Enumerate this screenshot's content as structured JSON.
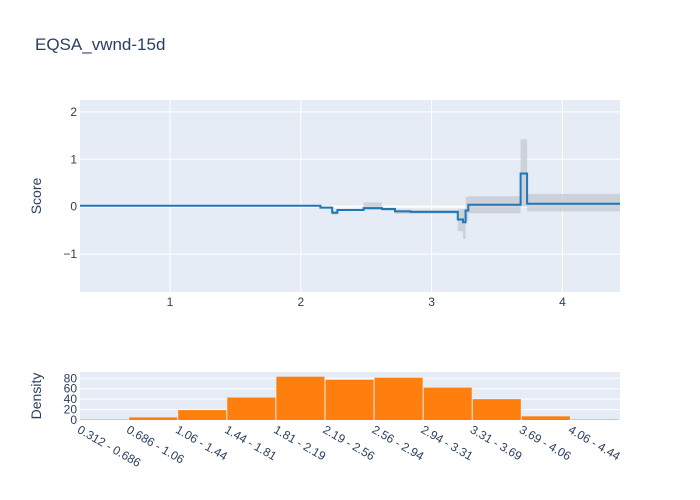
{
  "title": "EQSA_vwnd-15d",
  "chart_data": [
    {
      "type": "line",
      "ylabel": "Score",
      "xlim": [
        0.312,
        4.44
      ],
      "ylim": [
        -1.8,
        2.25
      ],
      "x_ticks": [
        1,
        2,
        3,
        4
      ],
      "y_ticks": [
        -1,
        0,
        1,
        2
      ],
      "y_tick_labels": [
        "−1",
        "0",
        "1",
        "2"
      ],
      "grid": true,
      "line_color": "#1f77b4",
      "band_color": "#c4c8d0",
      "steps": [
        {
          "x0": 0.312,
          "x1": 2.15,
          "y": 0.02,
          "lo": 0.02,
          "hi": 0.02
        },
        {
          "x0": 2.15,
          "x1": 2.24,
          "y": -0.02,
          "lo": -0.04,
          "hi": 0.0
        },
        {
          "x0": 2.24,
          "x1": 2.28,
          "y": -0.13,
          "lo": -0.17,
          "hi": -0.09
        },
        {
          "x0": 2.28,
          "x1": 2.48,
          "y": -0.07,
          "lo": -0.09,
          "hi": -0.05
        },
        {
          "x0": 2.48,
          "x1": 2.62,
          "y": -0.03,
          "lo": -0.07,
          "hi": 0.09
        },
        {
          "x0": 2.62,
          "x1": 2.72,
          "y": -0.05,
          "lo": -0.09,
          "hi": -0.02
        },
        {
          "x0": 2.72,
          "x1": 2.84,
          "y": -0.1,
          "lo": -0.15,
          "hi": -0.06
        },
        {
          "x0": 2.84,
          "x1": 3.2,
          "y": -0.11,
          "lo": -0.15,
          "hi": -0.07
        },
        {
          "x0": 3.2,
          "x1": 3.24,
          "y": -0.27,
          "lo": -0.52,
          "hi": -0.05
        },
        {
          "x0": 3.24,
          "x1": 3.26,
          "y": -0.33,
          "lo": -0.68,
          "hi": -0.05
        },
        {
          "x0": 3.26,
          "x1": 3.28,
          "y": -0.08,
          "lo": -0.3,
          "hi": 0.2
        },
        {
          "x0": 3.28,
          "x1": 3.68,
          "y": 0.04,
          "lo": -0.14,
          "hi": 0.22
        },
        {
          "x0": 3.68,
          "x1": 3.73,
          "y": 0.7,
          "lo": 0.0,
          "hi": 1.42
        },
        {
          "x0": 3.73,
          "x1": 4.44,
          "y": 0.06,
          "lo": -0.1,
          "hi": 0.27
        }
      ]
    },
    {
      "type": "bar",
      "ylabel": "Density",
      "ylim": [
        0,
        92
      ],
      "y_ticks": [
        0,
        20,
        40,
        60,
        80
      ],
      "grid": true,
      "bar_color": "#ff7f0e",
      "categories": [
        "0.312 - 0.686",
        "0.686 - 1.06",
        "1.06 - 1.44",
        "1.44 - 1.81",
        "1.81 - 2.19",
        "2.19 - 2.56",
        "2.56 - 2.94",
        "2.94 - 3.31",
        "3.31 - 3.69",
        "3.69 - 4.06",
        "4.06 - 4.44"
      ],
      "values": [
        1,
        5,
        19,
        43,
        83,
        77,
        81,
        62,
        40,
        7,
        1
      ]
    }
  ]
}
